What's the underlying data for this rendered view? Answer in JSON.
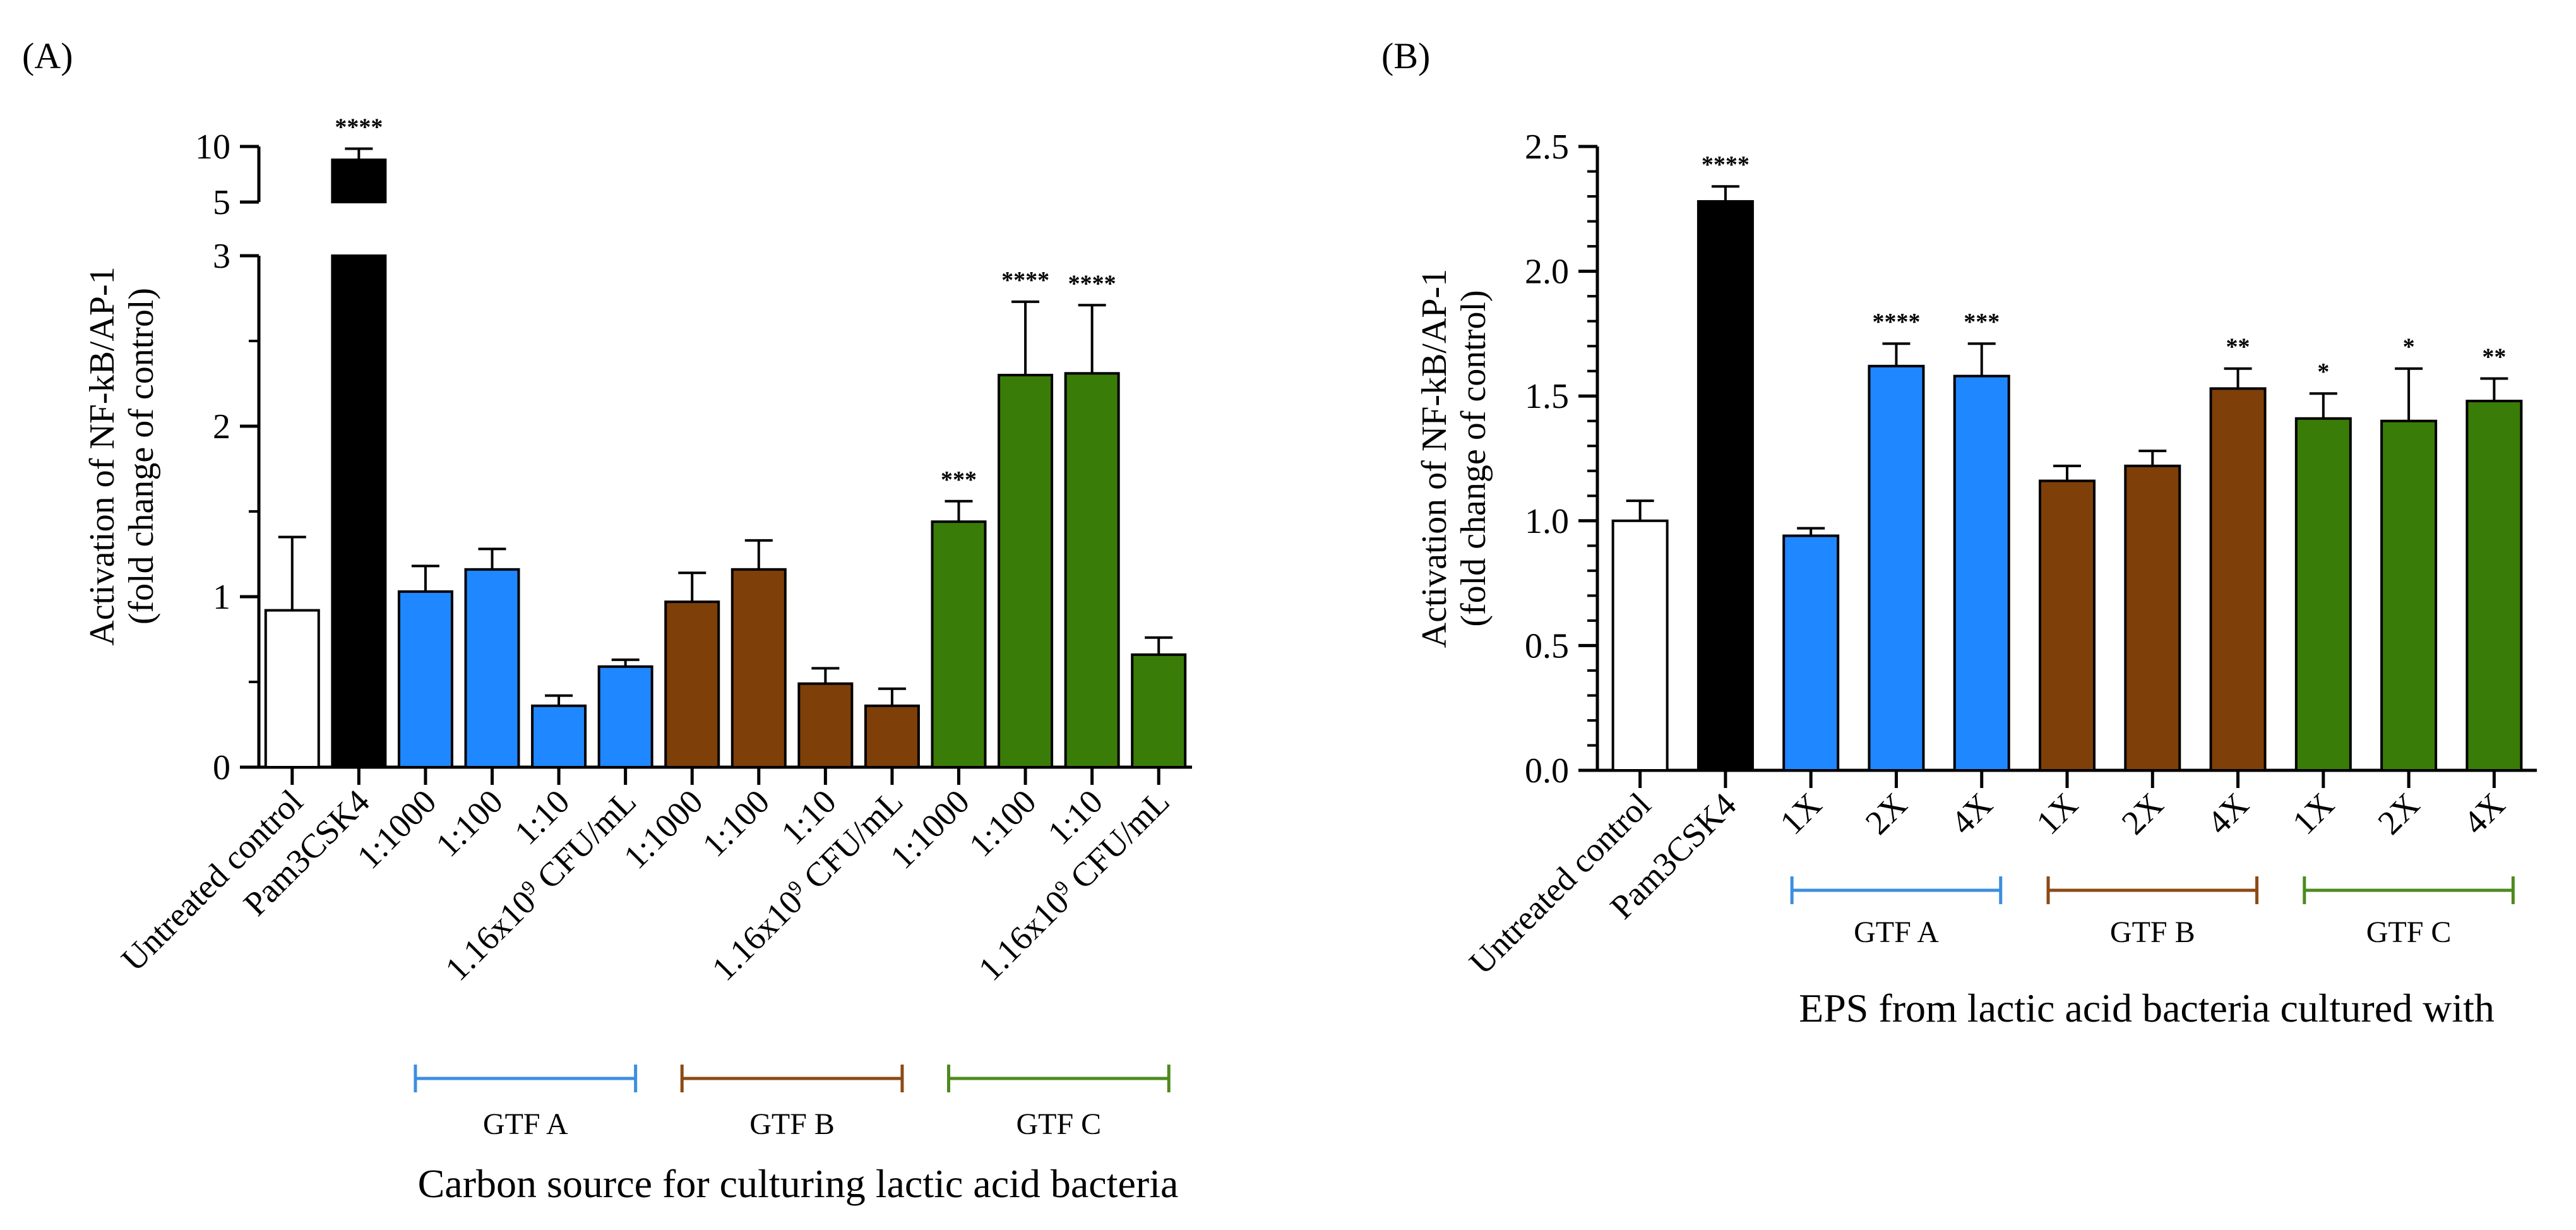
{
  "chart_data": [
    {
      "panel_label": "(A)",
      "type": "bar",
      "ylabel_line1": "Activation of NF-kB/AP-1",
      "ylabel_line2": "(fold change of control)",
      "xlabel": "Carbon source for culturing lactic acid bacteria",
      "y_axis_break": true,
      "ylim_lower": [
        0,
        3
      ],
      "ylim_upper": [
        5,
        10
      ],
      "yticks_lower": [
        "0",
        "1",
        "2",
        "3"
      ],
      "yticks_upper": [
        "5",
        "10"
      ],
      "categories": [
        "Untreated control",
        "Pam3CSK4",
        "1:1000",
        "1:100",
        "1:10",
        "1.16x10^9 CFU/mL",
        "1:1000",
        "1:100",
        "1:10",
        "1.16x10^9 CFU/mL",
        "1:1000",
        "1:100",
        "1:10",
        "1.16x10^9 CFU/mL"
      ],
      "values": [
        0.92,
        8.8,
        1.03,
        1.16,
        0.36,
        0.59,
        0.97,
        1.16,
        0.49,
        0.36,
        1.44,
        2.3,
        2.31,
        0.66
      ],
      "errors": [
        0.43,
        1.0,
        0.15,
        0.12,
        0.06,
        0.04,
        0.17,
        0.17,
        0.09,
        0.1,
        0.12,
        0.43,
        0.4,
        0.1
      ],
      "significance": [
        "",
        "****",
        "",
        "",
        "",
        "",
        "",
        "",
        "",
        "",
        "***",
        "****",
        "****",
        ""
      ],
      "colors": [
        "#ffffff",
        "#000000",
        "#1f87ff",
        "#1f87ff",
        "#1f87ff",
        "#1f87ff",
        "#7e3f08",
        "#7e3f08",
        "#7e3f08",
        "#7e3f08",
        "#3a7c08",
        "#3a7c08",
        "#3a7c08",
        "#3a7c08"
      ],
      "groups": [
        {
          "label": "GTF A",
          "color": "#3c8ee0",
          "from": 2,
          "to": 5
        },
        {
          "label": "GTF B",
          "color": "#8b4a14",
          "from": 6,
          "to": 9
        },
        {
          "label": "GTF C",
          "color": "#4d8a1e",
          "from": 10,
          "to": 13
        }
      ]
    },
    {
      "panel_label": "(B)",
      "type": "bar",
      "ylabel_line1": "Activation of NF-kB/AP-1",
      "ylabel_line2": "(fold change of control)",
      "xlabel": "EPS from lactic acid bacteria cultured with",
      "ylim": [
        0,
        2.5
      ],
      "yticks": [
        "0.0",
        "0.5",
        "1.0",
        "1.5",
        "2.0",
        "2.5"
      ],
      "categories": [
        "Untreated control",
        "Pam3CSK4",
        "1X",
        "2X",
        "4X",
        "1X",
        "2X",
        "4X",
        "1X",
        "2X",
        "4X"
      ],
      "values": [
        1.0,
        2.28,
        0.94,
        1.62,
        1.58,
        1.16,
        1.22,
        1.53,
        1.41,
        1.4,
        1.48
      ],
      "errors": [
        0.08,
        0.06,
        0.03,
        0.09,
        0.13,
        0.06,
        0.06,
        0.08,
        0.1,
        0.21,
        0.09
      ],
      "significance": [
        "",
        "****",
        "",
        "****",
        "***",
        "",
        "",
        "**",
        "*",
        "*",
        "**"
      ],
      "colors": [
        "#ffffff",
        "#000000",
        "#1f87ff",
        "#1f87ff",
        "#1f87ff",
        "#7e3f08",
        "#7e3f08",
        "#7e3f08",
        "#3a7c08",
        "#3a7c08",
        "#3a7c08"
      ],
      "groups": [
        {
          "label": "GTF A",
          "color": "#3c8ee0",
          "from": 2,
          "to": 4
        },
        {
          "label": "GTF B",
          "color": "#8b4a14",
          "from": 5,
          "to": 7
        },
        {
          "label": "GTF C",
          "color": "#4d8a1e",
          "from": 8,
          "to": 10
        }
      ]
    }
  ]
}
